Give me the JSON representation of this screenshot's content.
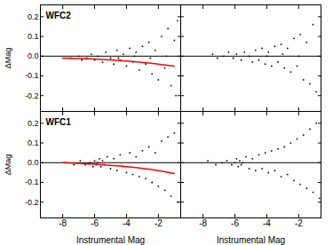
{
  "chart_data": [
    {
      "type": "scatter",
      "title": "WFC2",
      "y_label": "ΔMag",
      "tick_labels": "y",
      "xlim": [
        -9.4,
        -0.6
      ],
      "xticks": [
        -8,
        -6,
        -4,
        -2
      ],
      "ylim": [
        -0.28,
        0.26
      ],
      "yticks": [
        -0.2,
        -0.1,
        {
          "value": 0,
          "label": "0.0"
        },
        0.1,
        0.2
      ],
      "hline": 0,
      "series": [
        {
          "type": "scatter",
          "color": "#000000",
          "x": [
            -7.5,
            -7.0,
            -6.8,
            -6.5,
            -6.2,
            -6.0,
            -5.8,
            -5.5,
            -5.3,
            -5.0,
            -4.8,
            -4.6,
            -4.4,
            -4.2,
            -4.0,
            -3.8,
            -3.6,
            -3.4,
            -3.2,
            -3.0,
            -2.8,
            -2.6,
            -2.4,
            -2.2,
            -2.0,
            -1.8,
            -1.6,
            -1.4,
            -1.2,
            -1.0,
            -0.9,
            -0.8,
            -1.5,
            -2.5,
            -3.5,
            -4.5
          ],
          "values": [
            -0.01,
            0.0,
            -0.02,
            -0.01,
            0.01,
            -0.02,
            0.0,
            -0.03,
            0.02,
            -0.01,
            -0.04,
            0.03,
            -0.02,
            0.01,
            -0.05,
            0.04,
            -0.03,
            0.02,
            -0.07,
            0.05,
            -0.04,
            0.07,
            -0.09,
            0.03,
            -0.12,
            0.1,
            -0.06,
            0.14,
            -0.15,
            0.08,
            -0.2,
            0.18,
            0.0,
            -0.01,
            0.0,
            -0.01
          ]
        },
        {
          "type": "line",
          "color": "#ff0000",
          "x": [
            -8,
            -6,
            -4,
            -2,
            -1
          ],
          "values": [
            -0.01,
            -0.015,
            -0.025,
            -0.04,
            -0.05
          ]
        }
      ]
    },
    {
      "type": "scatter",
      "tick_labels": false,
      "xlim": [
        -9.4,
        -0.6
      ],
      "xticks": [
        -8,
        -6,
        -4,
        -2
      ],
      "ylim": [
        -0.28,
        0.26
      ],
      "yticks": [
        -0.2,
        -0.1,
        0,
        0.1,
        0.2
      ],
      "hline": 0,
      "series": [
        {
          "type": "scatter",
          "color": "#000000",
          "x": [
            -7.4,
            -7.1,
            -6.7,
            -6.4,
            -6.1,
            -5.9,
            -5.6,
            -5.4,
            -5.1,
            -4.9,
            -4.7,
            -4.5,
            -4.3,
            -4.1,
            -3.9,
            -3.7,
            -3.5,
            -3.3,
            -3.1,
            -2.9,
            -2.7,
            -2.5,
            -2.3,
            -2.1,
            -1.9,
            -1.7,
            -1.5,
            -1.3,
            -1.1,
            -0.9,
            -2.0,
            -3.0,
            -4.0
          ],
          "values": [
            0.01,
            -0.01,
            0.0,
            0.02,
            -0.01,
            0.01,
            -0.02,
            0.02,
            0.0,
            -0.03,
            0.03,
            -0.02,
            0.04,
            -0.04,
            0.02,
            -0.05,
            0.05,
            -0.03,
            0.06,
            -0.06,
            0.04,
            -0.08,
            0.09,
            -0.05,
            0.11,
            -0.12,
            0.07,
            -0.14,
            0.16,
            -0.18,
            0.0,
            0.01,
            0.0
          ]
        }
      ]
    },
    {
      "type": "scatter",
      "title": "WFC1",
      "x_label": "Instrumental Mag",
      "y_label": "ΔMag",
      "xlim": [
        -9.4,
        -0.6
      ],
      "xticks": [
        -8,
        -6,
        -4,
        -2
      ],
      "ylim": [
        -0.28,
        0.26
      ],
      "yticks": [
        -0.2,
        -0.1,
        {
          "value": 0,
          "label": "0.0"
        },
        0.1,
        0.2
      ],
      "hline": 0,
      "series": [
        {
          "type": "scatter",
          "color": "#000000",
          "x": [
            -7.8,
            -7.3,
            -6.9,
            -6.6,
            -6.3,
            -6.1,
            -6.0,
            -5.9,
            -5.8,
            -5.7,
            -5.6,
            -5.5,
            -5.4,
            -5.2,
            -5.0,
            -4.8,
            -4.6,
            -4.4,
            -4.2,
            -4.0,
            -3.8,
            -3.6,
            -3.4,
            -3.2,
            -3.0,
            -2.8,
            -2.6,
            -2.4,
            -2.2,
            -2.0,
            -1.8,
            -1.6,
            -1.4,
            -1.2,
            -1.0,
            -0.8
          ],
          "values": [
            0.0,
            -0.01,
            0.01,
            -0.01,
            0.0,
            -0.02,
            0.01,
            -0.01,
            0.0,
            0.02,
            -0.02,
            0.01,
            -0.01,
            0.03,
            -0.03,
            0.02,
            -0.04,
            0.04,
            -0.02,
            -0.05,
            0.05,
            -0.06,
            0.03,
            -0.07,
            0.06,
            -0.08,
            0.08,
            -0.1,
            0.05,
            -0.12,
            0.11,
            -0.14,
            0.13,
            -0.17,
            0.15,
            -0.2
          ]
        },
        {
          "type": "line",
          "color": "#ff0000",
          "x": [
            -8,
            -6,
            -4,
            -2,
            -1
          ],
          "values": [
            0.0,
            -0.008,
            -0.02,
            -0.04,
            -0.055
          ]
        }
      ]
    },
    {
      "type": "scatter",
      "x_label": "Instrumental Mag",
      "tick_labels": "x",
      "xlim": [
        -9.4,
        -0.6
      ],
      "xticks": [
        -8,
        -6,
        -4,
        -2
      ],
      "ylim": [
        -0.28,
        0.26
      ],
      "yticks": [
        -0.2,
        -0.1,
        0,
        0.1,
        0.2
      ],
      "hline": 0,
      "series": [
        {
          "type": "scatter",
          "color": "#000000",
          "x": [
            -7.7,
            -7.2,
            -6.8,
            -6.5,
            -6.2,
            -6.0,
            -5.9,
            -5.8,
            -5.7,
            -5.6,
            -5.5,
            -5.3,
            -5.1,
            -4.9,
            -4.7,
            -4.5,
            -4.3,
            -4.1,
            -3.9,
            -3.7,
            -3.5,
            -3.3,
            -3.1,
            -2.9,
            -2.7,
            -2.5,
            -2.3,
            -2.1,
            -1.9,
            -1.7,
            -1.5,
            -1.3,
            -1.1,
            -0.9,
            -0.7
          ],
          "values": [
            0.01,
            -0.01,
            0.0,
            0.01,
            -0.01,
            0.0,
            0.02,
            -0.02,
            0.01,
            -0.01,
            0.0,
            0.03,
            -0.03,
            0.02,
            -0.04,
            0.04,
            -0.03,
            0.05,
            -0.05,
            0.06,
            -0.04,
            0.07,
            -0.07,
            0.08,
            -0.06,
            0.1,
            -0.09,
            0.12,
            -0.11,
            0.14,
            -0.13,
            0.17,
            -0.15,
            0.2,
            -0.18
          ]
        }
      ]
    }
  ]
}
